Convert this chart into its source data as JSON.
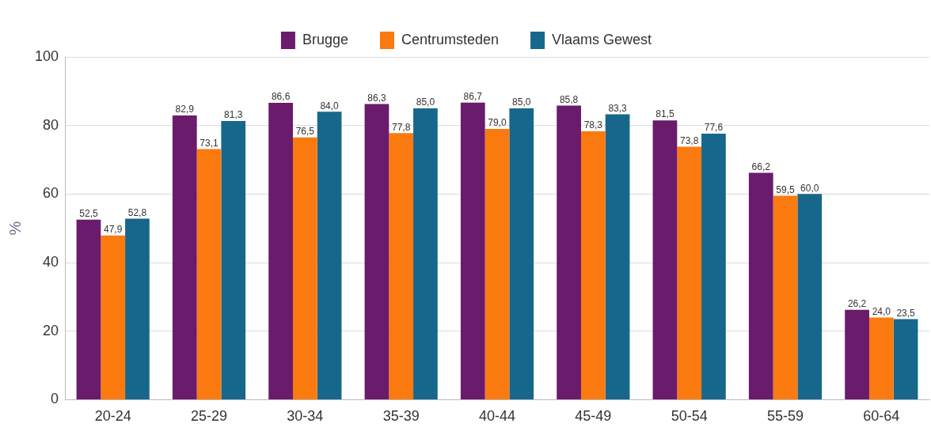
{
  "chart_data": {
    "type": "bar",
    "ylabel": "%",
    "categories": [
      "20-24",
      "25-29",
      "30-34",
      "35-39",
      "40-44",
      "45-49",
      "50-54",
      "55-59",
      "60-64"
    ],
    "series": [
      {
        "name": "Brugge",
        "color": "#6a1b6b",
        "values": [
          52.5,
          82.9,
          86.6,
          86.3,
          86.7,
          85.8,
          81.5,
          66.2,
          26.2
        ],
        "value_labels": [
          "52,5",
          "82,9",
          "86,6",
          "86,3",
          "86,7",
          "85,8",
          "81,5",
          "66,2",
          "26,2"
        ]
      },
      {
        "name": "Centrumsteden",
        "color": "#fb7a10",
        "values": [
          47.9,
          73.1,
          76.5,
          77.8,
          79.0,
          78.3,
          73.8,
          59.5,
          24.0
        ],
        "value_labels": [
          "47,9",
          "73,1",
          "76,5",
          "77,8",
          "79,0",
          "78,3",
          "73,8",
          "59,5",
          "24,0"
        ]
      },
      {
        "name": "Vlaams Gewest",
        "color": "#17678c",
        "values": [
          52.8,
          81.3,
          84.0,
          85.0,
          85.0,
          83.3,
          77.6,
          60.0,
          23.5
        ],
        "value_labels": [
          "52,8",
          "81,3",
          "84,0",
          "85,0",
          "85,0",
          "83,3",
          "77,6",
          "60,0",
          "23,5"
        ]
      }
    ],
    "ylim": [
      0,
      100
    ],
    "yticks": [
      0,
      20,
      40,
      60,
      80,
      100
    ],
    "grid": "y",
    "legend": "top"
  }
}
